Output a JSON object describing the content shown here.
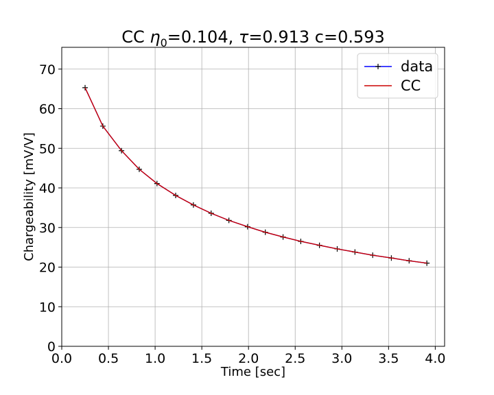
{
  "chart_data": {
    "type": "line",
    "title": {
      "prefix": "CC ",
      "eta_symbol": "η",
      "eta_subscript": "0",
      "eta_value": "=0.104, ",
      "tau_symbol": "τ",
      "tau_value": "=0.913 c=0.593"
    },
    "xlabel": "Time [sec]",
    "ylabel": "Chargeability [mV/V]",
    "xlim": [
      0.0,
      4.1
    ],
    "ylim": [
      0,
      75.5
    ],
    "xticks": [
      "0.0",
      "0.5",
      "1.0",
      "1.5",
      "2.0",
      "2.5",
      "3.0",
      "3.5",
      "4.0"
    ],
    "yticks": [
      "0",
      "10",
      "20",
      "30",
      "40",
      "50",
      "60",
      "70"
    ],
    "grid": true,
    "legend_position": "top-right",
    "x": [
      0.25,
      0.44,
      0.64,
      0.83,
      1.02,
      1.22,
      1.41,
      1.6,
      1.79,
      1.99,
      2.18,
      2.37,
      2.56,
      2.76,
      2.95,
      3.14,
      3.33,
      3.53,
      3.72,
      3.91
    ],
    "series": [
      {
        "name": "data",
        "color": "#0000ff",
        "marker": "+",
        "values": [
          65.3,
          55.6,
          49.4,
          44.7,
          41.1,
          38.1,
          35.7,
          33.6,
          31.8,
          30.2,
          28.8,
          27.6,
          26.5,
          25.5,
          24.6,
          23.8,
          23.0,
          22.3,
          21.6,
          21.0
        ]
      },
      {
        "name": "CC",
        "color": "#cc0000",
        "marker": "",
        "values": [
          65.3,
          55.6,
          49.4,
          44.7,
          41.1,
          38.1,
          35.7,
          33.6,
          31.8,
          30.2,
          28.8,
          27.6,
          26.5,
          25.5,
          24.6,
          23.8,
          23.0,
          22.3,
          21.6,
          21.0
        ]
      }
    ]
  }
}
